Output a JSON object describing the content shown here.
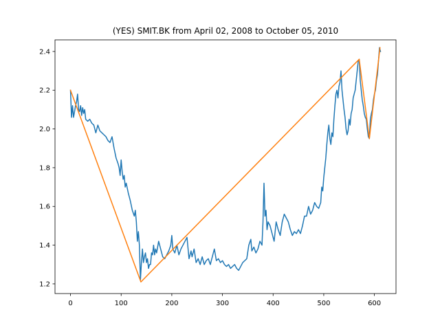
{
  "chart_data": {
    "type": "line",
    "title": "(YES) SMIT.BK from April 02, 2008 to October 05, 2010",
    "xlabel": "",
    "ylabel": "",
    "xlim": [
      -30.6,
      642.6
    ],
    "ylim": [
      1.15,
      2.46
    ],
    "x_ticks": [
      0,
      100,
      200,
      300,
      400,
      500,
      600
    ],
    "y_ticks": [
      1.2,
      1.4,
      1.6,
      1.8,
      2.0,
      2.2,
      2.4
    ],
    "grid": false,
    "legend": false,
    "series": [
      {
        "color": "#1f77b4",
        "points": [
          [
            0,
            2.2
          ],
          [
            2,
            2.06
          ],
          [
            4,
            2.12
          ],
          [
            6,
            2.06
          ],
          [
            8,
            2.09
          ],
          [
            10,
            2.12
          ],
          [
            12,
            2.14
          ],
          [
            14,
            2.18
          ],
          [
            16,
            2.1
          ],
          [
            18,
            2.09
          ],
          [
            20,
            2.12
          ],
          [
            22,
            2.07
          ],
          [
            24,
            2.11
          ],
          [
            26,
            2.08
          ],
          [
            28,
            2.1
          ],
          [
            30,
            2.05
          ],
          [
            34,
            2.04
          ],
          [
            38,
            2.05
          ],
          [
            42,
            2.03
          ],
          [
            46,
            2.02
          ],
          [
            50,
            1.98
          ],
          [
            54,
            2.02
          ],
          [
            58,
            1.99
          ],
          [
            62,
            1.98
          ],
          [
            66,
            1.97
          ],
          [
            70,
            1.96
          ],
          [
            74,
            1.94
          ],
          [
            78,
            1.93
          ],
          [
            82,
            1.96
          ],
          [
            86,
            1.9
          ],
          [
            90,
            1.85
          ],
          [
            94,
            1.82
          ],
          [
            96,
            1.8
          ],
          [
            98,
            1.76
          ],
          [
            100,
            1.84
          ],
          [
            102,
            1.78
          ],
          [
            104,
            1.74
          ],
          [
            106,
            1.76
          ],
          [
            108,
            1.7
          ],
          [
            110,
            1.72
          ],
          [
            114,
            1.67
          ],
          [
            118,
            1.63
          ],
          [
            122,
            1.58
          ],
          [
            126,
            1.55
          ],
          [
            128,
            1.58
          ],
          [
            130,
            1.52
          ],
          [
            132,
            1.42
          ],
          [
            134,
            1.47
          ],
          [
            136,
            1.4
          ],
          [
            138,
            1.22
          ],
          [
            140,
            1.31
          ],
          [
            142,
            1.38
          ],
          [
            144,
            1.31
          ],
          [
            146,
            1.34
          ],
          [
            148,
            1.36
          ],
          [
            150,
            1.31
          ],
          [
            152,
            1.33
          ],
          [
            154,
            1.28
          ],
          [
            156,
            1.3
          ],
          [
            158,
            1.3
          ],
          [
            160,
            1.36
          ],
          [
            162,
            1.35
          ],
          [
            164,
            1.4
          ],
          [
            166,
            1.35
          ],
          [
            168,
            1.38
          ],
          [
            170,
            1.36
          ],
          [
            174,
            1.42
          ],
          [
            178,
            1.38
          ],
          [
            182,
            1.34
          ],
          [
            186,
            1.33
          ],
          [
            190,
            1.35
          ],
          [
            194,
            1.37
          ],
          [
            198,
            1.4
          ],
          [
            200,
            1.45
          ],
          [
            202,
            1.38
          ],
          [
            206,
            1.36
          ],
          [
            210,
            1.4
          ],
          [
            214,
            1.35
          ],
          [
            218,
            1.38
          ],
          [
            222,
            1.4
          ],
          [
            226,
            1.42
          ],
          [
            230,
            1.44
          ],
          [
            234,
            1.33
          ],
          [
            238,
            1.37
          ],
          [
            240,
            1.34
          ],
          [
            244,
            1.38
          ],
          [
            248,
            1.31
          ],
          [
            252,
            1.33
          ],
          [
            256,
            1.3
          ],
          [
            260,
            1.34
          ],
          [
            264,
            1.3
          ],
          [
            268,
            1.32
          ],
          [
            272,
            1.33
          ],
          [
            276,
            1.3
          ],
          [
            280,
            1.34
          ],
          [
            284,
            1.38
          ],
          [
            288,
            1.32
          ],
          [
            292,
            1.33
          ],
          [
            296,
            1.31
          ],
          [
            300,
            1.32
          ],
          [
            304,
            1.3
          ],
          [
            308,
            1.29
          ],
          [
            312,
            1.3
          ],
          [
            316,
            1.28
          ],
          [
            320,
            1.29
          ],
          [
            324,
            1.3
          ],
          [
            328,
            1.28
          ],
          [
            332,
            1.27
          ],
          [
            336,
            1.29
          ],
          [
            340,
            1.31
          ],
          [
            344,
            1.32
          ],
          [
            348,
            1.33
          ],
          [
            352,
            1.4
          ],
          [
            356,
            1.43
          ],
          [
            358,
            1.37
          ],
          [
            362,
            1.39
          ],
          [
            366,
            1.36
          ],
          [
            370,
            1.38
          ],
          [
            374,
            1.42
          ],
          [
            378,
            1.4
          ],
          [
            380,
            1.52
          ],
          [
            382,
            1.72
          ],
          [
            384,
            1.55
          ],
          [
            386,
            1.58
          ],
          [
            388,
            1.48
          ],
          [
            390,
            1.52
          ],
          [
            394,
            1.5
          ],
          [
            398,
            1.46
          ],
          [
            402,
            1.42
          ],
          [
            406,
            1.52
          ],
          [
            410,
            1.48
          ],
          [
            414,
            1.45
          ],
          [
            418,
            1.52
          ],
          [
            422,
            1.56
          ],
          [
            426,
            1.54
          ],
          [
            430,
            1.52
          ],
          [
            434,
            1.48
          ],
          [
            438,
            1.45
          ],
          [
            442,
            1.47
          ],
          [
            446,
            1.46
          ],
          [
            450,
            1.48
          ],
          [
            454,
            1.46
          ],
          [
            458,
            1.5
          ],
          [
            462,
            1.55
          ],
          [
            466,
            1.55
          ],
          [
            470,
            1.6
          ],
          [
            474,
            1.56
          ],
          [
            478,
            1.58
          ],
          [
            482,
            1.62
          ],
          [
            486,
            1.6
          ],
          [
            490,
            1.59
          ],
          [
            494,
            1.62
          ],
          [
            496,
            1.7
          ],
          [
            498,
            1.68
          ],
          [
            500,
            1.75
          ],
          [
            502,
            1.8
          ],
          [
            504,
            1.85
          ],
          [
            506,
            1.92
          ],
          [
            508,
            1.98
          ],
          [
            510,
            2.02
          ],
          [
            512,
            1.95
          ],
          [
            514,
            1.92
          ],
          [
            516,
            1.98
          ],
          [
            518,
            1.96
          ],
          [
            520,
            2.05
          ],
          [
            522,
            2.12
          ],
          [
            524,
            2.18
          ],
          [
            526,
            2.2
          ],
          [
            528,
            2.16
          ],
          [
            530,
            2.22
          ],
          [
            532,
            2.24
          ],
          [
            534,
            2.3
          ],
          [
            536,
            2.2
          ],
          [
            538,
            2.15
          ],
          [
            540,
            2.1
          ],
          [
            542,
            2.06
          ],
          [
            544,
            2.0
          ],
          [
            546,
            1.97
          ],
          [
            548,
            1.99
          ],
          [
            550,
            2.05
          ],
          [
            552,
            2.02
          ],
          [
            554,
            2.08
          ],
          [
            556,
            2.1
          ],
          [
            558,
            2.16
          ],
          [
            560,
            2.18
          ],
          [
            562,
            2.2
          ],
          [
            564,
            2.25
          ],
          [
            566,
            2.3
          ],
          [
            568,
            2.35
          ],
          [
            570,
            2.36
          ],
          [
            572,
            2.25
          ],
          [
            574,
            2.2
          ],
          [
            576,
            2.15
          ],
          [
            578,
            2.12
          ],
          [
            580,
            2.08
          ],
          [
            582,
            2.06
          ],
          [
            584,
            2.05
          ],
          [
            586,
            2.0
          ],
          [
            588,
            1.96
          ],
          [
            590,
            1.95
          ],
          [
            592,
            2.05
          ],
          [
            594,
            2.08
          ],
          [
            596,
            2.1
          ],
          [
            598,
            2.15
          ],
          [
            600,
            2.18
          ],
          [
            602,
            2.2
          ],
          [
            604,
            2.25
          ],
          [
            606,
            2.28
          ],
          [
            608,
            2.35
          ],
          [
            610,
            2.42
          ],
          [
            612,
            2.4
          ]
        ]
      },
      {
        "color": "#ff7f0e",
        "points": [
          [
            0,
            2.2
          ],
          [
            139,
            1.21
          ],
          [
            570,
            2.36
          ],
          [
            590,
            1.95
          ],
          [
            611,
            2.42
          ]
        ]
      }
    ]
  }
}
